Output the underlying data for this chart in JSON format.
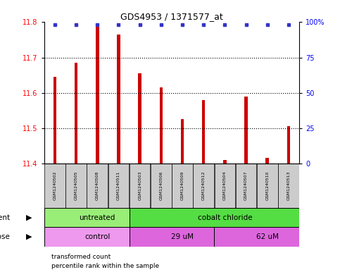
{
  "title": "GDS4953 / 1371577_at",
  "samples": [
    "GSM1240502",
    "GSM1240505",
    "GSM1240508",
    "GSM1240511",
    "GSM1240503",
    "GSM1240506",
    "GSM1240509",
    "GSM1240512",
    "GSM1240504",
    "GSM1240507",
    "GSM1240510",
    "GSM1240513"
  ],
  "bar_values": [
    11.645,
    11.685,
    11.795,
    11.765,
    11.655,
    11.615,
    11.525,
    11.58,
    11.41,
    11.59,
    11.415,
    11.505
  ],
  "bar_color": "#cc0000",
  "percentile_color": "#3333cc",
  "ylim_left": [
    11.4,
    11.8
  ],
  "ylim_right": [
    0,
    100
  ],
  "yticks_left": [
    11.4,
    11.5,
    11.6,
    11.7,
    11.8
  ],
  "yticks_right": [
    0,
    25,
    50,
    75,
    100
  ],
  "ytick_labels_right": [
    "0",
    "25",
    "50",
    "75",
    "100%"
  ],
  "agent_groups": [
    {
      "label": "untreated",
      "start": 0,
      "end": 4,
      "color": "#99ee77"
    },
    {
      "label": "cobalt chloride",
      "start": 4,
      "end": 12,
      "color": "#55dd44"
    }
  ],
  "dose_groups": [
    {
      "label": "control",
      "start": 0,
      "end": 4,
      "color": "#ee99ee"
    },
    {
      "label": "29 uM",
      "start": 4,
      "end": 8,
      "color": "#dd66dd"
    },
    {
      "label": "62 uM",
      "start": 8,
      "end": 12,
      "color": "#dd66dd"
    }
  ],
  "legend_items": [
    {
      "label": "transformed count",
      "color": "#cc0000"
    },
    {
      "label": "percentile rank within the sample",
      "color": "#3333cc"
    }
  ],
  "bar_bottom": 11.4,
  "bar_width": 0.15,
  "sample_box_color": "#cccccc",
  "figsize": [
    4.83,
    3.93
  ],
  "dpi": 100
}
